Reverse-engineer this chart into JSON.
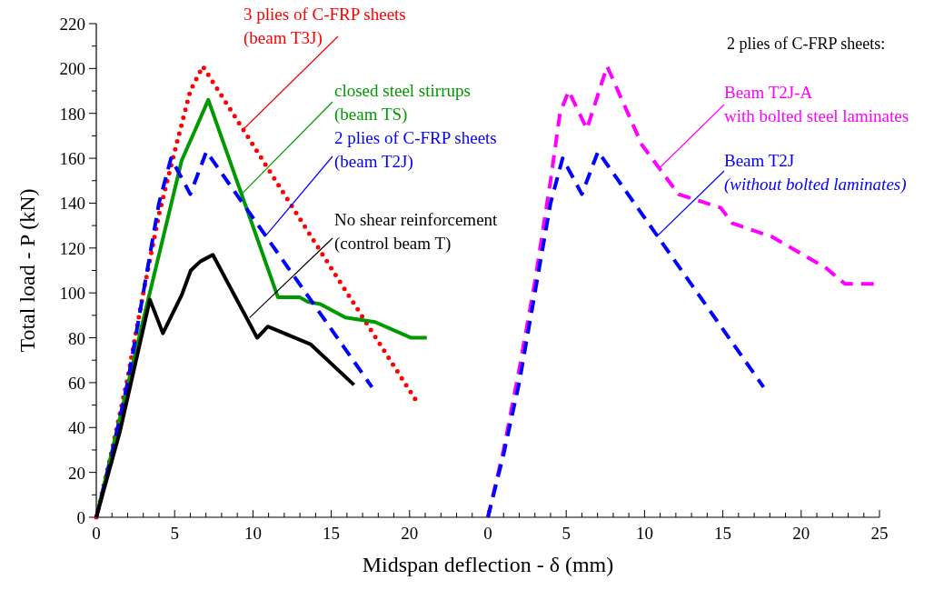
{
  "chart_data": [
    {
      "type": "line",
      "xlabel": "Midspan deflection - δ (mm)",
      "ylabel": "Total load - P (kN)",
      "xlim": [
        0,
        25
      ],
      "ylim": [
        0,
        220
      ],
      "xticks": [
        0,
        {
          "value": 1,
          "label": null
        },
        {
          "value": 2,
          "label": null
        },
        {
          "value": 3,
          "label": null
        },
        {
          "value": 4,
          "label": null
        },
        5,
        {
          "value": 6,
          "label": null
        },
        {
          "value": 7,
          "label": null
        },
        {
          "value": 8,
          "label": null
        },
        {
          "value": 9,
          "label": null
        },
        10,
        {
          "value": 11,
          "label": null
        },
        {
          "value": 12,
          "label": null
        },
        {
          "value": 13,
          "label": null
        },
        {
          "value": 14,
          "label": null
        },
        15,
        {
          "value": 16,
          "label": null
        },
        {
          "value": 17,
          "label": null
        },
        {
          "value": 18,
          "label": null
        },
        {
          "value": 19,
          "label": null
        },
        20,
        {
          "value": 21,
          "label": null
        },
        {
          "value": 22,
          "label": null
        },
        {
          "value": 23,
          "label": null
        },
        {
          "value": 24,
          "label": null
        }
      ],
      "yticks": [
        0,
        {
          "value": 10,
          "label": null
        },
        20,
        {
          "value": 30,
          "label": null
        },
        40,
        {
          "value": 50,
          "label": null
        },
        60,
        {
          "value": 70,
          "label": null
        },
        80,
        {
          "value": 90,
          "label": null
        },
        100,
        {
          "value": 110,
          "label": null
        },
        120,
        {
          "value": 130,
          "label": null
        },
        140,
        {
          "value": 150,
          "label": null
        },
        160,
        {
          "value": 170,
          "label": null
        },
        180,
        {
          "value": 190,
          "label": null
        },
        200,
        {
          "value": 210,
          "label": null
        },
        220
      ],
      "grid": false,
      "marker": "none",
      "series": [
        {
          "color": "#ff0000",
          "line_style": "dotted",
          "x": [
            0,
            1,
            2,
            3,
            4,
            5,
            6,
            6.8,
            10,
            15,
            20.6
          ],
          "values": [
            0,
            30,
            62,
            100,
            135,
            163,
            190,
            201,
            166,
            111,
            50
          ]
        },
        {
          "color": "#009900",
          "line_style": "solid",
          "x": [
            0,
            3,
            5.45,
            6.4,
            7.15,
            11.6,
            13,
            13.5,
            14.3,
            15.9,
            17.8,
            20.1,
            21.1
          ],
          "values": [
            0,
            88,
            159,
            174,
            186,
            98,
            98,
            96,
            95,
            89,
            87,
            80,
            80
          ]
        },
        {
          "color": "#0000ff",
          "line_style": "dashed",
          "x": [
            0,
            1,
            2,
            3,
            4,
            4.77,
            6,
            7.03,
            17.6
          ],
          "values": [
            0,
            28,
            60,
            100,
            140,
            160,
            144,
            163,
            58
          ]
        },
        {
          "color": "#000000",
          "line_style": "solid",
          "x": [
            0,
            1.5,
            3.42,
            4.25,
            5.45,
            6.03,
            6.64,
            7.44,
            10.27,
            10.95,
            13.7,
            16.45
          ],
          "values": [
            0,
            38,
            97,
            82,
            99,
            110,
            114,
            117,
            80,
            85,
            77,
            59
          ]
        }
      ],
      "annotations": [
        {
          "text": "3 plies of C-FRP sheets\n(beam T3J)",
          "x": 9.4,
          "y": 173
        },
        {
          "text": "closed steel stirrups\n(beam TS)",
          "x": 9.27,
          "y": 144
        },
        {
          "text": "2 plies of C-FRP sheets\n(beam T2J)",
          "x": 10.76,
          "y": 125
        },
        {
          "text": "No shear reinforcement\n(control beam T)",
          "x": 9.79,
          "y": 89
        }
      ]
    },
    {
      "type": "line",
      "xlim": [
        0,
        25
      ],
      "ylim": [
        0,
        220
      ],
      "tick_labels": "x",
      "xticks": [
        0,
        {
          "value": 1,
          "label": null
        },
        {
          "value": 2,
          "label": null
        },
        {
          "value": 3,
          "label": null
        },
        {
          "value": 4,
          "label": null
        },
        5,
        {
          "value": 6,
          "label": null
        },
        {
          "value": 7,
          "label": null
        },
        {
          "value": 8,
          "label": null
        },
        {
          "value": 9,
          "label": null
        },
        10,
        {
          "value": 11,
          "label": null
        },
        {
          "value": 12,
          "label": null
        },
        {
          "value": 13,
          "label": null
        },
        {
          "value": 14,
          "label": null
        },
        15,
        {
          "value": 16,
          "label": null
        },
        {
          "value": 17,
          "label": null
        },
        {
          "value": 18,
          "label": null
        },
        {
          "value": 19,
          "label": null
        },
        20,
        {
          "value": 21,
          "label": null
        },
        {
          "value": 22,
          "label": null
        },
        {
          "value": 23,
          "label": null
        },
        {
          "value": 24,
          "label": null
        },
        25
      ],
      "grid": false,
      "marker": "none",
      "series": [
        {
          "color": "#ff00ff",
          "line_style": "dashed",
          "x": [
            0,
            1,
            2,
            3,
            4,
            4.6,
            5.16,
            6.32,
            7.61,
            9.83,
            11,
            12.16,
            14.85,
            15.62,
            18.14,
            21.6,
            22.8,
            25
          ],
          "values": [
            0,
            30,
            66,
            105,
            150,
            180,
            190,
            173,
            201,
            166,
            155,
            144,
            138,
            131,
            125,
            111,
            104,
            104
          ]
        },
        {
          "color": "#0000ff",
          "line_style": "dashed",
          "x": [
            0,
            1,
            2,
            3,
            4,
            4.77,
            6,
            7.03,
            17.6
          ],
          "values": [
            0,
            28,
            60,
            100,
            140,
            160,
            144,
            163,
            58
          ]
        }
      ],
      "annotations": [
        "2 plies of C-FRP sheets:",
        {
          "text": "Beam T2J-A\nwith bolted steel laminates",
          "x": 11,
          "y": 156
        },
        {
          "text": "Beam T2J\n(without bolted laminates)",
          "x": 10.76,
          "y": 125
        }
      ]
    }
  ]
}
